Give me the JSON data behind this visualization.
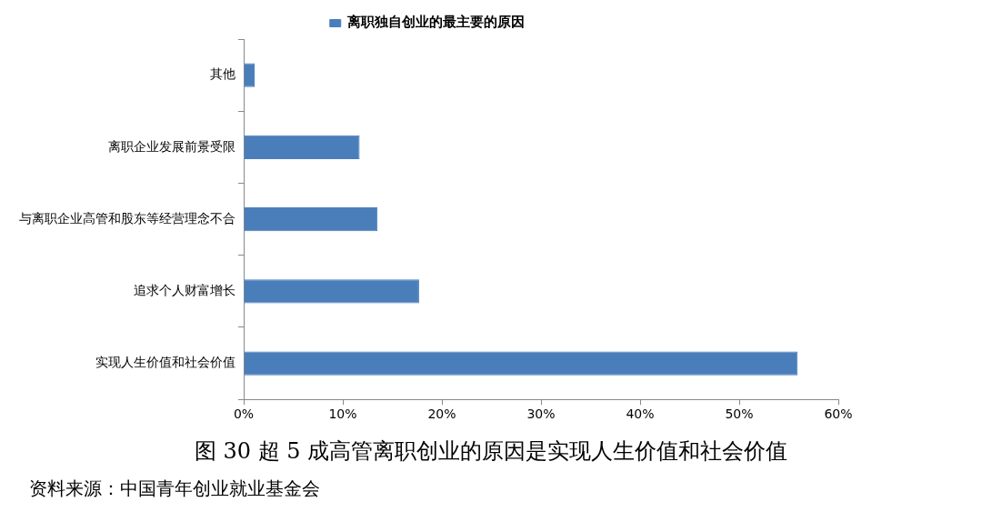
{
  "chart_data": {
    "type": "bar",
    "orientation": "horizontal",
    "title": "图 30 超 5 成高管离职创业的原因是实现人生价值和社会价值",
    "categories": [
      "其他",
      "离职企业发展前景受限",
      "与离职企业高管和股东等经营理念不合",
      "追求个人财富增长",
      "实现人生价值和社会价值"
    ],
    "series": [
      {
        "name": "离职独自创业的最主要的原因",
        "color": "#4a7ebb",
        "values": [
          1.1,
          11.7,
          13.5,
          17.7,
          55.9
        ]
      }
    ],
    "xlim": [
      0,
      60
    ],
    "xticks": [
      {
        "value": 0,
        "label": "0%"
      },
      {
        "value": 10,
        "label": "10%"
      },
      {
        "value": 20,
        "label": "20%"
      },
      {
        "value": 30,
        "label": "30%"
      },
      {
        "value": 40,
        "label": "40%"
      },
      {
        "value": 50,
        "label": "50%"
      },
      {
        "value": 60,
        "label": "60%"
      }
    ],
    "legend": "top",
    "grid": false,
    "annotations": [
      "资料来源：中国青年创业就业基金会"
    ]
  }
}
